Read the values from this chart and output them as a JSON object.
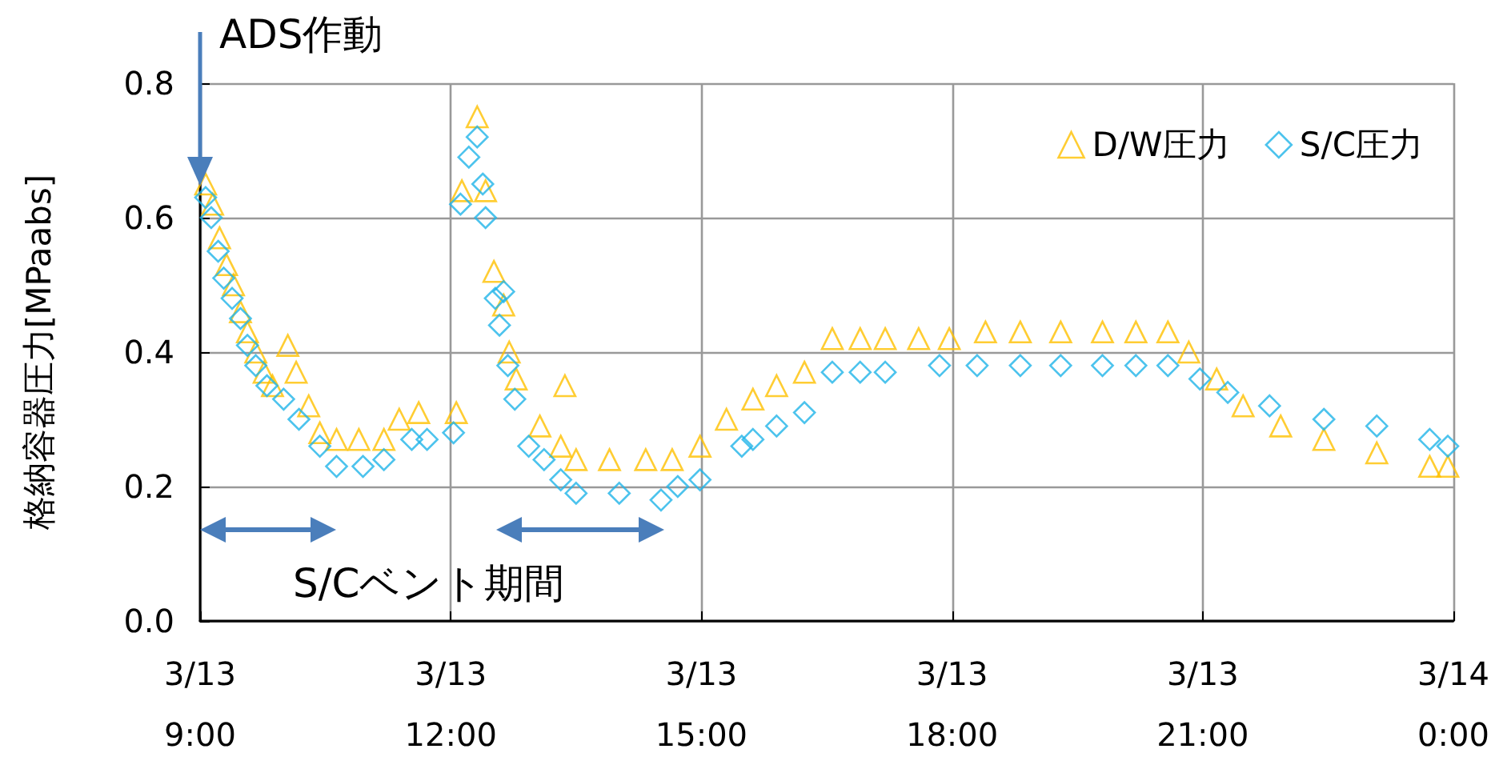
{
  "chart_data": {
    "type": "scatter",
    "ylabel": "格納容器圧力[MPaabs]",
    "xlim": [
      "--03-13T09:00",
      "--03-14T00:00"
    ],
    "xticks": [
      {
        "value": "--03-13T09:00",
        "label": "3/13\n9:00"
      },
      {
        "value": "--03-13T12:00",
        "label": "3/13\n12:00"
      },
      {
        "value": "--03-13T15:00",
        "label": "3/13\n15:00"
      },
      {
        "value": "--03-13T18:00",
        "label": "3/13\n18:00"
      },
      {
        "value": "--03-13T21:00",
        "label": "3/13\n21:00"
      },
      {
        "value": "--03-14T00:00",
        "label": "3/14\n0:00"
      }
    ],
    "ylim": [
      0,
      0.8
    ],
    "yticks": [
      {
        "value": 0,
        "label": "0.0"
      },
      {
        "value": 0.2,
        "label": "0.2"
      },
      {
        "value": 0.4,
        "label": "0.4"
      },
      {
        "value": 0.6,
        "label": "0.6"
      },
      {
        "value": 0.8,
        "label": "0.8"
      }
    ],
    "grid": true,
    "legend": "top right",
    "annotations": [
      "ADS作動",
      "S/Cベント期間"
    ],
    "series": [
      {
        "name": "D/W圧力",
        "color": "#ffc000",
        "marker": "triangle",
        "x": [
          "--03-13T09:04",
          "--03-13T09:09",
          "--03-13T09:14",
          "--03-13T09:19",
          "--03-13T09:24",
          "--03-13T09:29",
          "--03-13T09:34",
          "--03-13T09:40",
          "--03-13T09:46",
          "--03-13T09:52",
          "--03-13T10:03",
          "--03-13T10:09",
          "--03-13T10:18",
          "--03-13T10:26",
          "--03-13T10:38",
          "--03-13T10:54",
          "--03-13T11:12",
          "--03-13T11:23",
          "--03-13T11:37",
          "--03-13T12:04",
          "--03-13T12:08",
          "--03-13T12:19",
          "--03-13T12:25",
          "--03-13T12:31",
          "--03-13T12:38",
          "--03-13T12:42",
          "--03-13T12:47",
          "--03-13T13:04",
          "--03-13T13:19",
          "--03-13T13:22",
          "--03-13T13:30",
          "--03-13T13:54",
          "--03-13T14:20",
          "--03-13T14:39",
          "--03-13T14:59",
          "--03-13T15:18",
          "--03-13T15:37",
          "--03-13T15:54",
          "--03-13T16:14",
          "--03-13T16:34",
          "--03-13T16:54",
          "--03-13T17:12",
          "--03-13T17:36",
          "--03-13T17:58",
          "--03-13T18:24",
          "--03-13T18:49",
          "--03-13T19:18",
          "--03-13T19:48",
          "--03-13T20:12",
          "--03-13T20:35",
          "--03-13T20:50",
          "--03-13T21:10",
          "--03-13T21:29",
          "--03-13T21:56",
          "--03-13T22:27",
          "--03-13T23:05",
          "--03-13T23:43",
          "--03-13T23:56"
        ],
        "values": [
          0.65,
          0.62,
          0.57,
          0.53,
          0.5,
          0.46,
          0.43,
          0.4,
          0.37,
          0.35,
          0.41,
          0.37,
          0.32,
          0.28,
          0.27,
          0.27,
          0.27,
          0.3,
          0.31,
          0.31,
          0.64,
          0.75,
          0.64,
          0.52,
          0.47,
          0.4,
          0.36,
          0.29,
          0.26,
          0.35,
          0.24,
          0.24,
          0.24,
          0.24,
          0.26,
          0.3,
          0.33,
          0.35,
          0.37,
          0.42,
          0.42,
          0.42,
          0.42,
          0.42,
          0.43,
          0.43,
          0.43,
          0.43,
          0.43,
          0.43,
          0.4,
          0.36,
          0.32,
          0.29,
          0.27,
          0.25,
          0.23,
          0.23
        ]
      },
      {
        "name": "S/C圧力",
        "color": "#1fb4e8",
        "marker": "diamond",
        "x": [
          "--03-13T09:04",
          "--03-13T09:08",
          "--03-13T09:13",
          "--03-13T09:17",
          "--03-13T09:23",
          "--03-13T09:29",
          "--03-13T09:34",
          "--03-13T09:40",
          "--03-13T09:48",
          "--03-13T10:00",
          "--03-13T10:11",
          "--03-13T10:26",
          "--03-13T10:38",
          "--03-13T10:57",
          "--03-13T11:12",
          "--03-13T11:32",
          "--03-13T11:43",
          "--03-13T12:02",
          "--03-13T12:07",
          "--03-13T12:13",
          "--03-13T12:19",
          "--03-13T12:23",
          "--03-13T12:25",
          "--03-13T12:32",
          "--03-13T12:35",
          "--03-13T12:38",
          "--03-13T12:41",
          "--03-13T12:46",
          "--03-13T12:56",
          "--03-13T13:07",
          "--03-13T13:19",
          "--03-13T13:30",
          "--03-13T14:01",
          "--03-13T14:31",
          "--03-13T14:43",
          "--03-13T14:59",
          "--03-13T15:29",
          "--03-13T15:37",
          "--03-13T15:54",
          "--03-13T16:14",
          "--03-13T16:34",
          "--03-13T16:54",
          "--03-13T17:12",
          "--03-13T17:51",
          "--03-13T18:18",
          "--03-13T18:49",
          "--03-13T19:18",
          "--03-13T19:48",
          "--03-13T20:12",
          "--03-13T20:35",
          "--03-13T20:58",
          "--03-13T21:18",
          "--03-13T21:48",
          "--03-13T22:27",
          "--03-13T23:05",
          "--03-13T23:43",
          "--03-13T23:56"
        ],
        "values": [
          0.63,
          0.6,
          0.55,
          0.51,
          0.48,
          0.45,
          0.41,
          0.38,
          0.35,
          0.33,
          0.3,
          0.26,
          0.23,
          0.23,
          0.24,
          0.27,
          0.27,
          0.28,
          0.62,
          0.69,
          0.72,
          0.65,
          0.6,
          0.48,
          0.44,
          0.49,
          0.38,
          0.33,
          0.26,
          0.24,
          0.21,
          0.19,
          0.19,
          0.18,
          0.2,
          0.21,
          0.26,
          0.27,
          0.29,
          0.31,
          0.37,
          0.37,
          0.37,
          0.38,
          0.38,
          0.38,
          0.38,
          0.38,
          0.38,
          0.38,
          0.36,
          0.34,
          0.32,
          0.3,
          0.29,
          0.27,
          0.26
        ]
      }
    ]
  }
}
